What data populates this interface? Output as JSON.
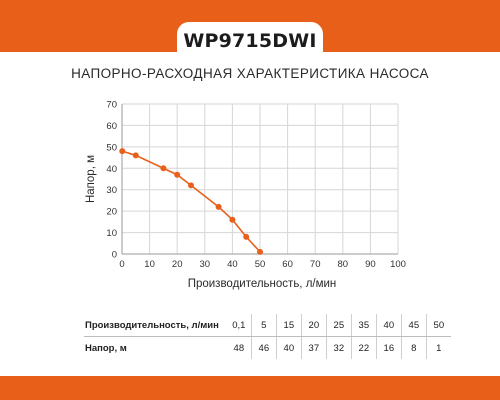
{
  "brand": {
    "accent": "#e8611c",
    "frame": "#e85f1a"
  },
  "model": "WP9715DWI",
  "chart_data": {
    "type": "line",
    "title": "НАПОРНО-РАСХОДНАЯ ХАРАКТЕРИСТИКА НАСОСА",
    "xlabel": "Производительность, л/мин",
    "ylabel": "Напор, м",
    "xlim": [
      0,
      100
    ],
    "ylim": [
      0,
      70
    ],
    "xticks": [
      "0",
      "10",
      "20",
      "30",
      "40",
      "50",
      "60",
      "70",
      "80",
      "90",
      "100"
    ],
    "yticks": [
      "0",
      "10",
      "20",
      "30",
      "40",
      "50",
      "60",
      "70"
    ],
    "grid": true,
    "series": [
      {
        "x": [
          0.1,
          5,
          15,
          20,
          25,
          35,
          40,
          45,
          50
        ],
        "y": [
          48,
          46,
          40,
          37,
          32,
          22,
          16,
          8,
          1
        ],
        "color": "#e8611c"
      }
    ]
  },
  "table": {
    "rows": [
      {
        "label": "Производительность, л/мин",
        "values": [
          "0,1",
          "5",
          "15",
          "20",
          "25",
          "35",
          "40",
          "45",
          "50"
        ]
      },
      {
        "label": "Напор, м",
        "values": [
          "48",
          "46",
          "40",
          "37",
          "32",
          "22",
          "16",
          "8",
          "1"
        ]
      }
    ]
  }
}
